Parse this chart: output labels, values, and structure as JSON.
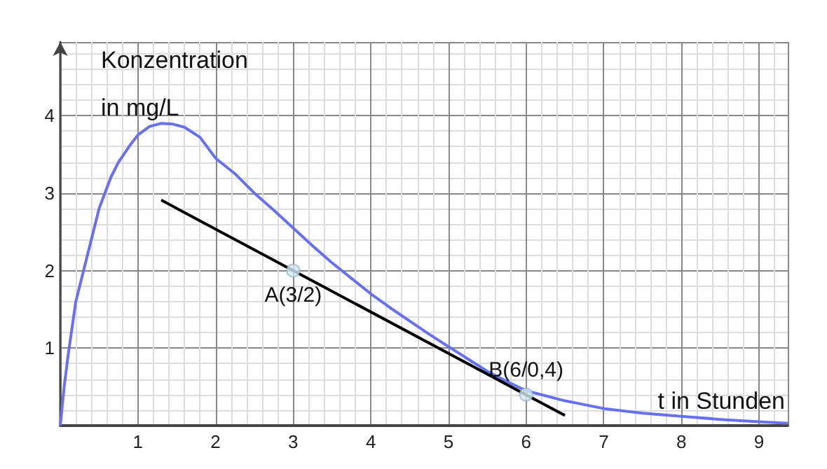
{
  "chart_data": {
    "type": "line",
    "xlabel": "t in Stunden",
    "ylabel": "Konzentration\nin mg/L",
    "xlim": [
      0,
      9.37
    ],
    "ylim": [
      0,
      4.95
    ],
    "xticks": [
      1,
      2,
      3,
      4,
      5,
      6,
      7,
      8,
      9
    ],
    "yticks": [
      1,
      2,
      3,
      4
    ],
    "grid": true,
    "marker": "none",
    "line_style": "solid",
    "series": [
      {
        "color": "#6670f0",
        "x": [
          0,
          0.05,
          0.1,
          0.2,
          0.3,
          0.4,
          0.5,
          0.65,
          0.75,
          0.9,
          1,
          1.15,
          1.3,
          1.45,
          1.6,
          1.8,
          2,
          2.25,
          2.5,
          2.75,
          3,
          3.25,
          3.5,
          3.75,
          4,
          4.25,
          4.5,
          4.75,
          5,
          5.25,
          5.5,
          5.75,
          6,
          6.5,
          7,
          7.5,
          8,
          8.5,
          9,
          9.37
        ],
        "values": [
          0,
          0.5,
          0.9,
          1.6,
          2.0,
          2.4,
          2.8,
          3.2,
          3.4,
          3.62,
          3.75,
          3.86,
          3.9,
          3.89,
          3.85,
          3.72,
          3.45,
          3.25,
          3.0,
          2.78,
          2.55,
          2.32,
          2.1,
          1.9,
          1.7,
          1.52,
          1.35,
          1.18,
          1.02,
          0.86,
          0.7,
          0.57,
          0.45,
          0.32,
          0.22,
          0.16,
          0.12,
          0.08,
          0.05,
          0.03
        ]
      },
      {
        "color": "#000000",
        "x": [
          1.3,
          6.5
        ],
        "values": [
          2.91,
          0.13
        ]
      },
      {
        "type": "scatter",
        "marker": "circle",
        "color": "#d3e8f2",
        "x": [
          3,
          6
        ],
        "values": [
          2,
          0.4
        ]
      }
    ],
    "annotations": [
      {
        "text": "A(3/2)",
        "x": 3,
        "y": 2
      },
      {
        "text": "B(6/0,4)",
        "x": 6,
        "y": 0.4
      }
    ]
  }
}
